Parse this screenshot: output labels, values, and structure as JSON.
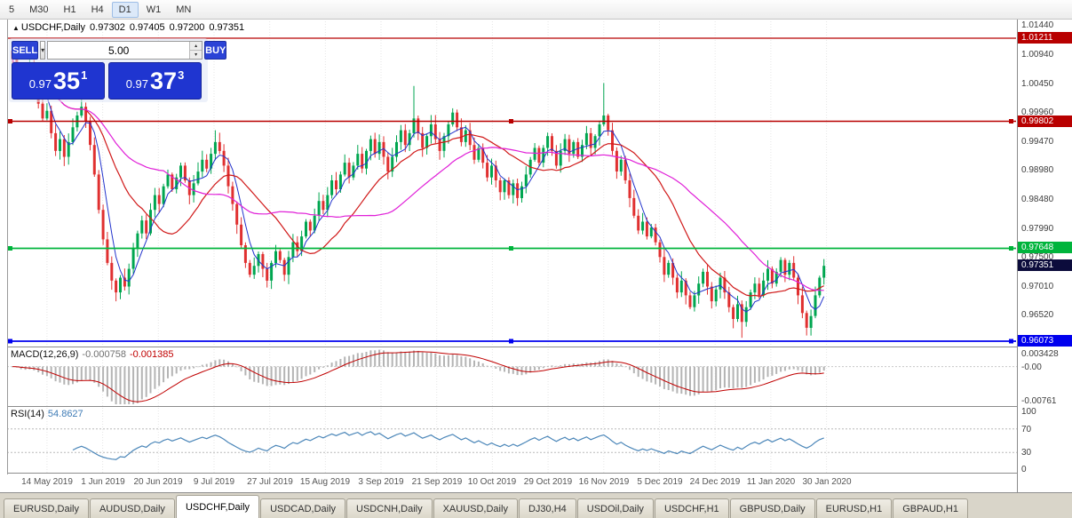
{
  "toolbar": {
    "timeframes": [
      "5",
      "M30",
      "H1",
      "H4",
      "D1",
      "W1",
      "MN"
    ],
    "active": "D1"
  },
  "chart_header": {
    "marker": "▲",
    "symbol": "USDCHF,Daily",
    "open": "0.97302",
    "high": "0.97405",
    "low": "0.97200",
    "close": "0.97351"
  },
  "trade_panel": {
    "sell_label": "SELL",
    "buy_label": "BUY",
    "volume": "5.00",
    "icons": {
      "dropdown": "▾",
      "up": "▴",
      "down": "▾"
    },
    "sell_price": {
      "prefix": "0.97",
      "big": "35",
      "sup": "1"
    },
    "buy_price": {
      "prefix": "0.97",
      "big": "37",
      "sup": "3"
    }
  },
  "price_axis": {
    "ticks": [
      "1.01440",
      "1.00940",
      "1.00450",
      "0.99960",
      "0.99470",
      "0.98980",
      "0.98480",
      "0.97990",
      "0.97500",
      "0.97010",
      "0.96520"
    ],
    "levels": [
      {
        "text": "1.01211",
        "value": 1.01211,
        "color": "#b80000",
        "width": 1.2,
        "handles": false
      },
      {
        "text": "0.99802",
        "value": 0.99802,
        "color": "#b80000",
        "width": 1.4,
        "handles": true
      },
      {
        "text": "0.97648",
        "value": 0.97648,
        "color": "#00b43c",
        "width": 1.8,
        "handles": true
      },
      {
        "text": "0.97351",
        "value": 0.97351,
        "color": "#0c0c3c",
        "width": 0,
        "handles": false,
        "current": true
      },
      {
        "text": "0.96073",
        "value": 0.96073,
        "color": "#0000ee",
        "width": 1.8,
        "handles": true
      }
    ]
  },
  "macd_panel": {
    "name": "MACD(12,26,9)",
    "main_value": "-0.000758",
    "signal_value": "-0.001385",
    "axis": [
      {
        "text": "0.003428",
        "v": 0.003428
      },
      {
        "text": "-0.00",
        "v": 0
      },
      {
        "text": "-0.00761",
        "v": -0.00761
      }
    ]
  },
  "rsi_panel": {
    "name": "RSI(14)",
    "value": "54.8627",
    "axis": [
      {
        "text": "100",
        "v": 100
      },
      {
        "text": "70",
        "v": 70
      },
      {
        "text": "30",
        "v": 30
      },
      {
        "text": "0",
        "v": 0
      }
    ],
    "levels": [
      70,
      30
    ]
  },
  "tabs": {
    "items": [
      "EURUSD,Daily",
      "AUDUSD,Daily",
      "USDCHF,Daily",
      "USDCAD,Daily",
      "USDCNH,Daily",
      "XAUUSD,Daily",
      "DJ30,H4",
      "USDOil,Daily",
      "USDCHF,H1",
      "GBPUSD,Daily",
      "EURUSD,H1",
      "GBPAUD,H1"
    ],
    "active": "USDCHF,Daily"
  },
  "chart_data": {
    "type": "candlestick",
    "symbol": "USDCHF",
    "timeframe": "Daily",
    "title": "USDCHF,Daily",
    "x_labels": [
      "14 May 2019",
      "1 Jun 2019",
      "20 Jun 2019",
      "9 Jul 2019",
      "27 Jul 2019",
      "15 Aug 2019",
      "3 Sep 2019",
      "21 Sep 2019",
      "10 Oct 2019",
      "29 Oct 2019",
      "16 Nov 2019",
      "5 Dec 2019",
      "24 Dec 2019",
      "11 Jan 2020",
      "30 Jan 2020"
    ],
    "price_range": [
      0.9597,
      1.0151
    ],
    "first_open": 1.01,
    "closes": [
      1.0085,
      1.006,
      1.0035,
      1.0058,
      1.0075,
      1.004,
      1.001,
      0.9985,
      0.9998,
      0.996,
      0.993,
      0.995,
      0.992,
      0.9945,
      0.997,
      0.999,
      1.0005,
      0.998,
      0.994,
      0.989,
      0.983,
      0.978,
      0.974,
      0.971,
      0.969,
      0.9715,
      0.97,
      0.973,
      0.9765,
      0.979,
      0.9812,
      0.979,
      0.983,
      0.9855,
      0.984,
      0.987,
      0.989,
      0.9865,
      0.9885,
      0.9905,
      0.988,
      0.9855,
      0.9875,
      0.9895,
      0.9915,
      0.99,
      0.9925,
      0.9945,
      0.993,
      0.9905,
      0.987,
      0.984,
      0.9805,
      0.977,
      0.974,
      0.972,
      0.9735,
      0.9755,
      0.973,
      0.971,
      0.974,
      0.976,
      0.9745,
      0.972,
      0.975,
      0.9775,
      0.976,
      0.9785,
      0.981,
      0.9795,
      0.982,
      0.9845,
      0.983,
      0.9855,
      0.988,
      0.9865,
      0.989,
      0.991,
      0.9885,
      0.9905,
      0.9925,
      0.99,
      0.993,
      0.995,
      0.9925,
      0.9945,
      0.992,
      0.9895,
      0.992,
      0.9945,
      0.9965,
      0.994,
      0.996,
      0.9985,
      0.996,
      0.9935,
      0.9955,
      0.9975,
      0.995,
      0.993,
      0.9955,
      0.9975,
      0.9995,
      0.997,
      0.9945,
      0.9965,
      0.994,
      0.9915,
      0.9935,
      0.991,
      0.9885,
      0.9905,
      0.988,
      0.986,
      0.988,
      0.9855,
      0.9875,
      0.985,
      0.987,
      0.989,
      0.9915,
      0.9935,
      0.991,
      0.9935,
      0.9955,
      0.993,
      0.9905,
      0.993,
      0.995,
      0.9925,
      0.9945,
      0.992,
      0.994,
      0.996,
      0.9935,
      0.9955,
      0.9975,
      0.999,
      0.9965,
      0.993,
      0.9895,
      0.9915,
      0.988,
      0.985,
      0.982,
      0.9795,
      0.981,
      0.9785,
      0.98,
      0.9775,
      0.975,
      0.972,
      0.974,
      0.9715,
      0.969,
      0.971,
      0.9685,
      0.9665,
      0.9685,
      0.9705,
      0.9725,
      0.97,
      0.9675,
      0.9695,
      0.9715,
      0.969,
      0.9665,
      0.9645,
      0.967,
      0.964,
      0.9665,
      0.969,
      0.9705,
      0.9685,
      0.971,
      0.973,
      0.9705,
      0.9725,
      0.9745,
      0.972,
      0.974,
      0.9715,
      0.9685,
      0.9655,
      0.963,
      0.965,
      0.9685,
      0.9715,
      0.97351
    ],
    "wick_overrides": [
      {
        "i": 0,
        "high": 1.0098
      },
      {
        "i": 24,
        "low": 0.9675
      },
      {
        "i": 47,
        "high": 0.9965
      },
      {
        "i": 93,
        "high": 1.004
      },
      {
        "i": 137,
        "high": 1.0045
      },
      {
        "i": 169,
        "low": 0.9613
      },
      {
        "i": 184,
        "low": 0.9617
      }
    ],
    "colors": {
      "up": "#00a650",
      "down": "#e03030",
      "ma_fast": "#2233cc",
      "ma_mid": "#d01818",
      "ma_slow": "#e020d8",
      "macd_hist": "#b4b4b4",
      "macd_signal": "#c00000",
      "rsi": "#4c87b9"
    },
    "ma_periods": {
      "fast": 5,
      "mid": 18,
      "slow": 36
    },
    "macd": {
      "fast": 12,
      "slow": 26,
      "signal": 9,
      "current_main": -0.000758,
      "current_signal": -0.001385,
      "range_top": 0.003428,
      "range_bottom": -0.00761
    },
    "rsi": {
      "period": 14,
      "current": 54.8627,
      "range": [
        0,
        100
      ],
      "levels": [
        70,
        30
      ]
    }
  }
}
